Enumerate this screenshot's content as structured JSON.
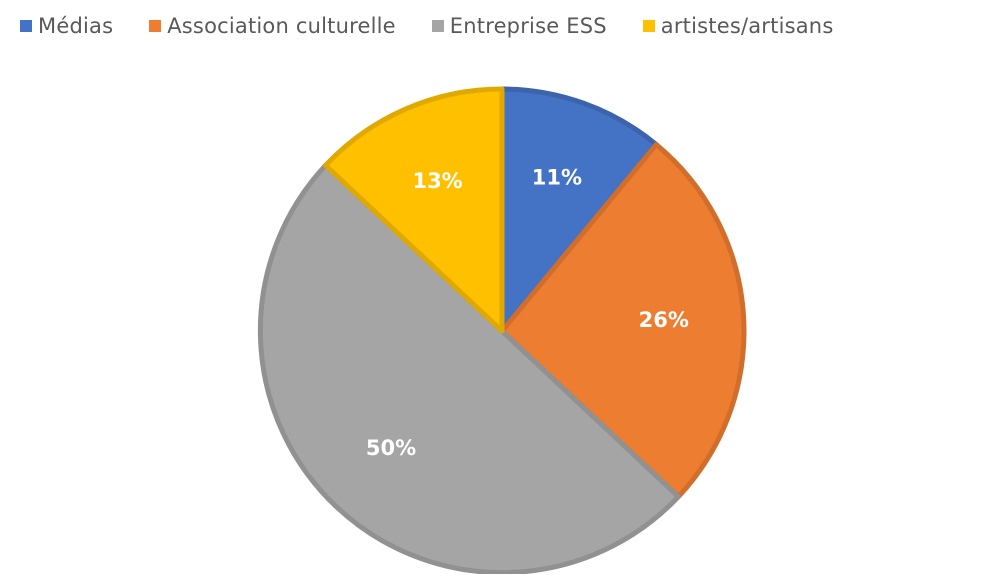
{
  "chart_data": {
    "type": "pie",
    "title": "",
    "categories": [
      "Médias",
      "Association culturelle",
      "Entreprise ESS",
      "artistes/artisans"
    ],
    "values": [
      11,
      26,
      50,
      13
    ],
    "value_labels": [
      "11%",
      "26%",
      "50%",
      "13%"
    ],
    "colors": [
      "#4472C4",
      "#ED7D31",
      "#A5A5A5",
      "#FFC000"
    ],
    "legend_position": "top",
    "start_angle": "12 o'clock",
    "direction": "clockwise"
  }
}
